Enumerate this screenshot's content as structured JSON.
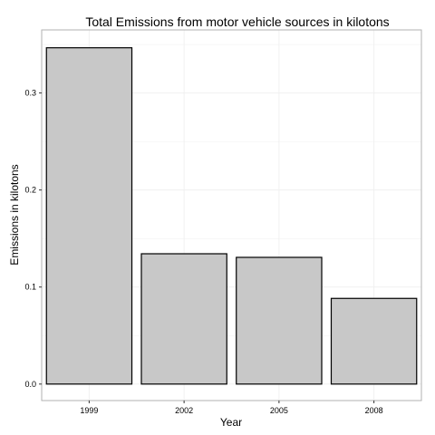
{
  "chart_data": {
    "type": "bar",
    "title": "Total Emissions from motor vehicle sources in kilotons",
    "xlabel": "Year",
    "ylabel": "Emissions in kilotons",
    "categories": [
      "1999",
      "2002",
      "2005",
      "2008"
    ],
    "values": [
      0.3466,
      0.1343,
      0.1306,
      0.0883
    ],
    "ylim": [
      -0.017,
      0.365
    ],
    "yticks": [
      0.0,
      0.1,
      0.2,
      0.3
    ],
    "ytick_labels": [
      "0.0",
      "0.1",
      "0.2",
      "0.3"
    ],
    "grid": true,
    "legend": "none",
    "colors": {
      "bar_fill": "#c8c8c8",
      "bar_stroke": "#000000",
      "grid": "#f0f0f0",
      "panel_border": "#b2b2b2"
    }
  }
}
